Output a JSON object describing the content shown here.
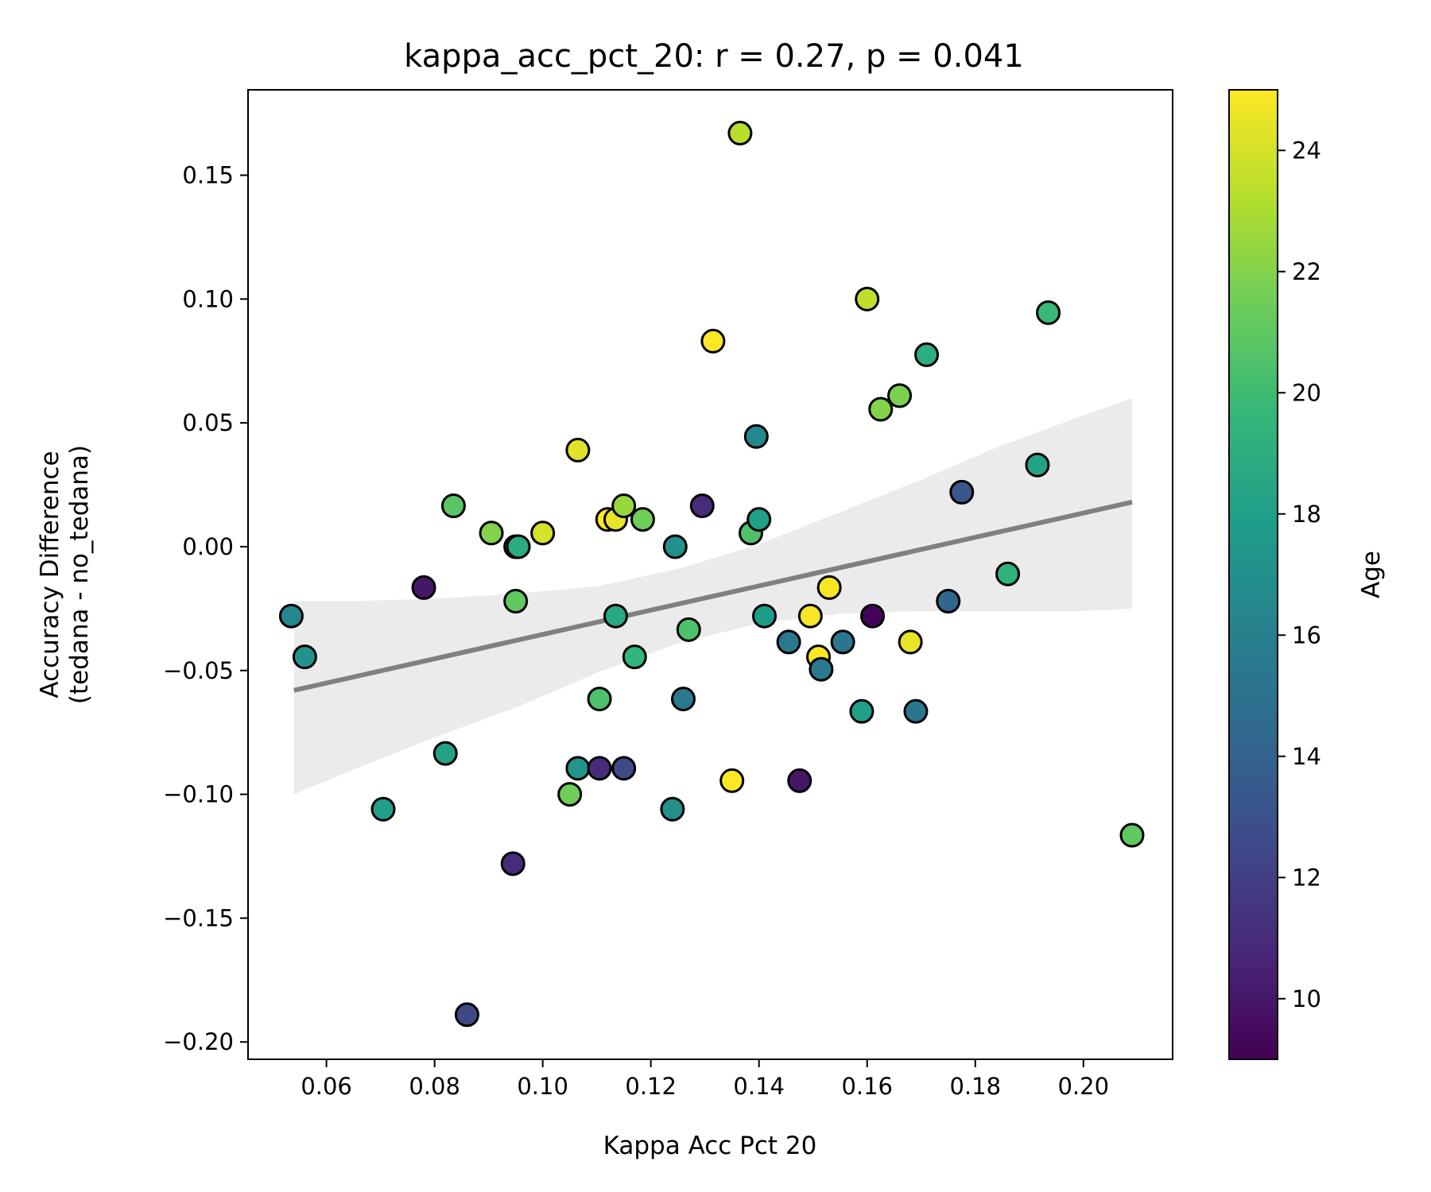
{
  "chart_data": {
    "type": "scatter",
    "title": "kappa_acc_pct_20: r = 0.27, p = 0.041",
    "xlabel": "Kappa Acc Pct 20",
    "ylabel": [
      "Accuracy Difference",
      "(tedana - no_tedana)"
    ],
    "xlim": [
      0.0455,
      0.2165
    ],
    "ylim": [
      -0.207,
      0.1845
    ],
    "x_ticks": [
      0.06,
      0.08,
      0.1,
      0.12,
      0.14,
      0.16,
      0.18,
      0.2
    ],
    "x_tick_labels": [
      "0.06",
      "0.08",
      "0.10",
      "0.12",
      "0.14",
      "0.16",
      "0.18",
      "0.20"
    ],
    "y_ticks": [
      0.15,
      0.1,
      0.05,
      0.0,
      -0.05,
      -0.1,
      -0.15,
      -0.2
    ],
    "y_tick_labels": [
      "0.15",
      "0.10",
      "0.05",
      "0.00",
      "−0.05",
      "−0.10",
      "−0.15",
      "−0.20"
    ],
    "grid": false,
    "colorbar": {
      "label": "Age",
      "range": [
        9,
        25
      ],
      "ticks": [
        10,
        12,
        14,
        16,
        18,
        20,
        22,
        24
      ],
      "tick_labels": [
        "10",
        "12",
        "14",
        "16",
        "18",
        "20",
        "22",
        "24"
      ],
      "colormap": "viridis"
    },
    "regression_line": {
      "x": [
        0.054,
        0.209
      ],
      "y": [
        -0.058,
        0.018
      ],
      "color": "#808080",
      "ci_x": [
        0.054,
        0.065,
        0.08,
        0.095,
        0.11,
        0.125,
        0.14,
        0.155,
        0.17,
        0.185,
        0.2,
        0.209
      ],
      "ci_lower": [
        -0.1,
        -0.09,
        -0.077,
        -0.065,
        -0.051,
        -0.039,
        -0.031,
        -0.027,
        -0.026,
        -0.026,
        -0.026,
        -0.025
      ],
      "ci_upper": [
        -0.022,
        -0.022,
        -0.021,
        -0.019,
        -0.016,
        -0.009,
        0.001,
        0.014,
        0.027,
        0.041,
        0.053,
        0.06
      ],
      "ci_color": "#ebebeb"
    },
    "points": [
      {
        "x": 0.0535,
        "y": -0.028,
        "c": 16.5
      },
      {
        "x": 0.056,
        "y": -0.0445,
        "c": 17.2
      },
      {
        "x": 0.0705,
        "y": -0.106,
        "c": 18.0
      },
      {
        "x": 0.078,
        "y": -0.0165,
        "c": 10.0
      },
      {
        "x": 0.082,
        "y": -0.0835,
        "c": 18.2
      },
      {
        "x": 0.0835,
        "y": 0.0165,
        "c": 20.8
      },
      {
        "x": 0.086,
        "y": -0.189,
        "c": 12.5
      },
      {
        "x": 0.0905,
        "y": 0.0055,
        "c": 22.0
      },
      {
        "x": 0.0945,
        "y": -0.128,
        "c": 11.0
      },
      {
        "x": 0.095,
        "y": 0.0,
        "c": 18.5
      },
      {
        "x": 0.095,
        "y": -0.022,
        "c": 21.0
      },
      {
        "x": 0.0955,
        "y": 0.0,
        "c": 18.8
      },
      {
        "x": 0.1,
        "y": 0.0055,
        "c": 24.0
      },
      {
        "x": 0.105,
        "y": -0.1,
        "c": 21.5
      },
      {
        "x": 0.1065,
        "y": 0.039,
        "c": 24.3
      },
      {
        "x": 0.1065,
        "y": -0.0895,
        "c": 17.3
      },
      {
        "x": 0.1105,
        "y": -0.0615,
        "c": 20.5
      },
      {
        "x": 0.1105,
        "y": -0.0895,
        "c": 11.0
      },
      {
        "x": 0.112,
        "y": 0.011,
        "c": 25.0
      },
      {
        "x": 0.1135,
        "y": 0.011,
        "c": 24.5
      },
      {
        "x": 0.1135,
        "y": -0.028,
        "c": 18.5
      },
      {
        "x": 0.115,
        "y": -0.0895,
        "c": 12.5
      },
      {
        "x": 0.115,
        "y": 0.0165,
        "c": 22.5
      },
      {
        "x": 0.117,
        "y": -0.0445,
        "c": 19.5
      },
      {
        "x": 0.1185,
        "y": 0.011,
        "c": 21.5
      },
      {
        "x": 0.124,
        "y": -0.106,
        "c": 17.0
      },
      {
        "x": 0.1245,
        "y": 0.0,
        "c": 17.0
      },
      {
        "x": 0.126,
        "y": -0.0615,
        "c": 15.5
      },
      {
        "x": 0.127,
        "y": -0.0335,
        "c": 20.5
      },
      {
        "x": 0.1295,
        "y": 0.0165,
        "c": 11.0
      },
      {
        "x": 0.1315,
        "y": 0.083,
        "c": 25.0
      },
      {
        "x": 0.135,
        "y": -0.0945,
        "c": 25.0
      },
      {
        "x": 0.1365,
        "y": 0.167,
        "c": 23.3
      },
      {
        "x": 0.1385,
        "y": 0.0055,
        "c": 20.5
      },
      {
        "x": 0.1395,
        "y": 0.0445,
        "c": 16.5
      },
      {
        "x": 0.14,
        "y": 0.011,
        "c": 18.0
      },
      {
        "x": 0.141,
        "y": -0.028,
        "c": 17.8
      },
      {
        "x": 0.1455,
        "y": -0.0385,
        "c": 15.5
      },
      {
        "x": 0.1475,
        "y": -0.0945,
        "c": 10.0
      },
      {
        "x": 0.1495,
        "y": -0.028,
        "c": 24.8
      },
      {
        "x": 0.151,
        "y": -0.0445,
        "c": 25.0
      },
      {
        "x": 0.1515,
        "y": -0.0495,
        "c": 15.5
      },
      {
        "x": 0.153,
        "y": -0.0165,
        "c": 24.8
      },
      {
        "x": 0.1555,
        "y": -0.0385,
        "c": 15.2
      },
      {
        "x": 0.159,
        "y": -0.0665,
        "c": 18.0
      },
      {
        "x": 0.16,
        "y": 0.1,
        "c": 23.5
      },
      {
        "x": 0.161,
        "y": -0.028,
        "c": 9.2
      },
      {
        "x": 0.1625,
        "y": 0.0555,
        "c": 22.0
      },
      {
        "x": 0.166,
        "y": 0.061,
        "c": 21.8
      },
      {
        "x": 0.168,
        "y": -0.0385,
        "c": 24.5
      },
      {
        "x": 0.169,
        "y": -0.0665,
        "c": 15.3
      },
      {
        "x": 0.171,
        "y": 0.0775,
        "c": 19.0
      },
      {
        "x": 0.175,
        "y": -0.022,
        "c": 14.3
      },
      {
        "x": 0.1775,
        "y": 0.022,
        "c": 13.3
      },
      {
        "x": 0.186,
        "y": -0.011,
        "c": 19.3
      },
      {
        "x": 0.1915,
        "y": 0.033,
        "c": 18.2
      },
      {
        "x": 0.1935,
        "y": 0.0945,
        "c": 19.8
      },
      {
        "x": 0.209,
        "y": -0.1165,
        "c": 21.0
      }
    ]
  }
}
